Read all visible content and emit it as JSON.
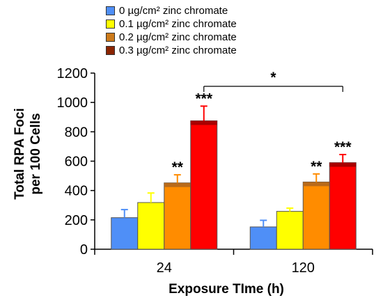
{
  "chart_data": {
    "type": "bar",
    "categories": [
      "24",
      "120"
    ],
    "series": [
      {
        "name": "0 µg/cm² zinc chromate",
        "values": [
          215,
          152
        ],
        "errors": [
          55,
          45
        ],
        "color": "#4f8ff7"
      },
      {
        "name": "0.1 µg/cm² zinc chromate",
        "values": [
          318,
          258
        ],
        "errors": [
          65,
          22
        ],
        "color": "#ffff00"
      },
      {
        "name": "0.2 µg/cm² zinc chromate",
        "values": [
          452,
          458
        ],
        "errors": [
          55,
          55
        ],
        "color": "#ff8c00"
      },
      {
        "name": "0.3 µg/cm² zinc chromate",
        "values": [
          875,
          590
        ],
        "errors": [
          100,
          55
        ],
        "color": "#ff0000"
      }
    ],
    "significance": [
      [
        null,
        null
      ],
      [
        null,
        null
      ],
      [
        "**",
        "**"
      ],
      [
        "***",
        "***"
      ]
    ],
    "bracket_label": "*",
    "xlabel": "Exposure TIme (h)",
    "ylabel_lines": [
      "Total RPA Foci",
      "per 100 Cells"
    ],
    "ylim": [
      0,
      1200
    ],
    "yticks": [
      0,
      200,
      400,
      600,
      800,
      1000,
      1200
    ],
    "legend_swatch_colors": [
      "#4f8ff7",
      "#ffff00",
      "#cc7a1a",
      "#8b2500"
    ]
  }
}
